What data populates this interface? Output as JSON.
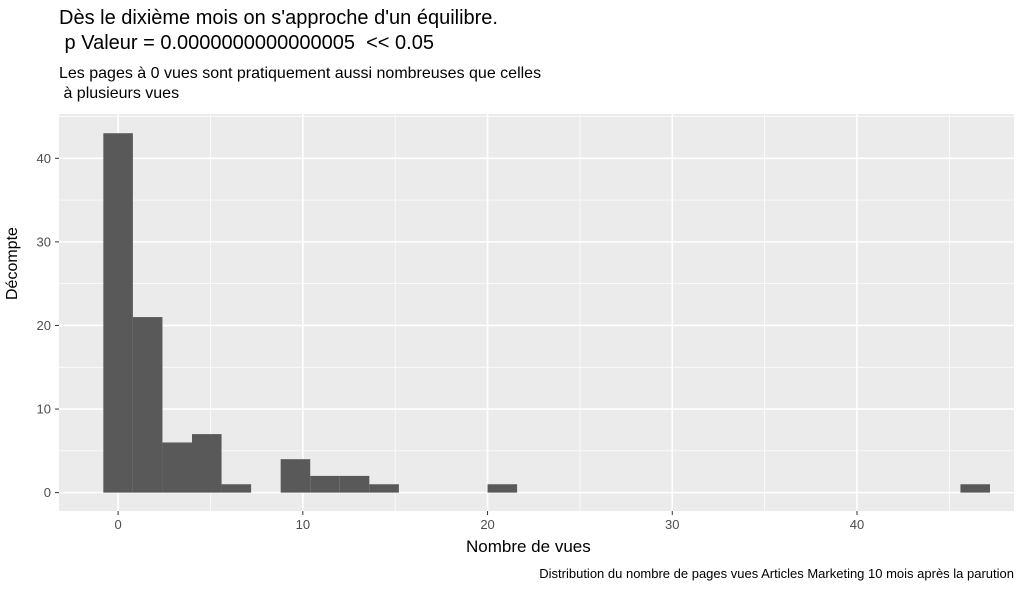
{
  "chart_data": {
    "type": "bar",
    "title_lines": [
      "Dès le dixième mois on s'approche d'un équilibre.",
      " p Valeur = 0.0000000000000005  << 0.05"
    ],
    "subtitle_lines": [
      "Les pages à 0 vues sont pratiquement aussi nombreuses que celles",
      " à plusieurs vues"
    ],
    "caption": "Distribution du nombre de pages vues Articles Marketing 10 mois après la parution",
    "xlabel": "Nombre de vues",
    "ylabel": "Décompte",
    "xlim": [
      -3.2,
      48.5
    ],
    "ylim": [
      -2.2,
      45.3
    ],
    "xticks": [
      0,
      10,
      20,
      30,
      40
    ],
    "yticks": [
      0,
      10,
      20,
      30,
      40
    ],
    "bin_width": 1.6,
    "bins": [
      {
        "x0": -0.8,
        "x1": 0.8,
        "count": 43
      },
      {
        "x0": 0.8,
        "x1": 2.4,
        "count": 21
      },
      {
        "x0": 2.4,
        "x1": 4.0,
        "count": 6
      },
      {
        "x0": 4.0,
        "x1": 5.6,
        "count": 7
      },
      {
        "x0": 5.6,
        "x1": 7.2,
        "count": 1
      },
      {
        "x0": 7.2,
        "x1": 8.8,
        "count": 0
      },
      {
        "x0": 8.8,
        "x1": 10.4,
        "count": 4
      },
      {
        "x0": 10.4,
        "x1": 12.0,
        "count": 2
      },
      {
        "x0": 12.0,
        "x1": 13.6,
        "count": 2
      },
      {
        "x0": 13.6,
        "x1": 15.2,
        "count": 1
      },
      {
        "x0": 20.0,
        "x1": 21.6,
        "count": 1
      },
      {
        "x0": 45.6,
        "x1": 47.2,
        "count": 1
      }
    ],
    "grid": true,
    "panel_background": "#ebebeb",
    "bar_color": "#595959",
    "grid_color": "#ffffff"
  }
}
